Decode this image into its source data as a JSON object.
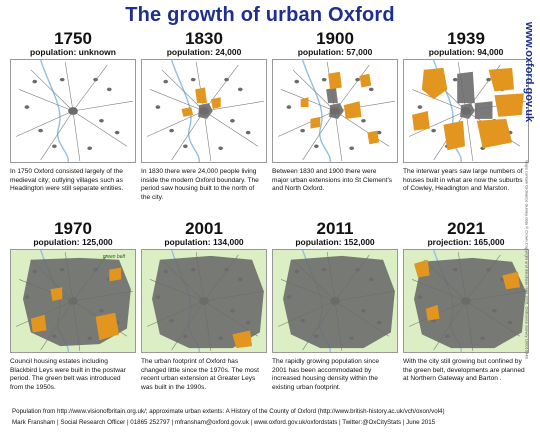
{
  "title": "The growth of urban Oxford",
  "website": "www.oxford.gov.uk",
  "map_credit": "Maps contain Ordnance Survey data © Crown Copyright and database right 2015. Ordnance Survey 100019348.",
  "green_belt_label": "green belt",
  "colors": {
    "title": "#1f2f8f",
    "urban": "#6b6b6b",
    "extension": "#e3961f",
    "green_belt": "#dcefc4",
    "river": "#8fc0e6",
    "roads": "#7a7a7a"
  },
  "panels": [
    {
      "year": "1750",
      "population": "population: unknown",
      "description": "In 1750 Oxford consisted largely of the medieval city; outlying villages such as Headington were still separate entities."
    },
    {
      "year": "1830",
      "population": "population: 24,000",
      "description": "In 1830 there were 24,000 people living inside the modern Oxford boundary.  The period saw housing built to the north of the city."
    },
    {
      "year": "1900",
      "population": "population: 57,000",
      "description": "Between 1830 and 1900 there were major urban extensions into St Clement's and North Oxford."
    },
    {
      "year": "1939",
      "population": "population: 94,000",
      "description": "The interwar years saw large numbers of houses built in what are now the suburbs of Cowley, Headington and Marston."
    },
    {
      "year": "1970",
      "population": "population: 125,000",
      "description": "Council housing estates including Blackbird Leys were built in the postwar period. The green belt was introduced from the 1950s."
    },
    {
      "year": "2001",
      "population": "population: 134,000",
      "description": "The urban footprint of Oxford has changed little since the 1970s.  The most recent urban extension at Greater Leys was built in the 1990s."
    },
    {
      "year": "2011",
      "population": "population: 152,000",
      "description": "The rapidly growing population since 2001 has been accommodated by increased housing density within the existing urban footprint."
    },
    {
      "year": "2021",
      "population": "projection: 165,000",
      "description": "With the city still growing but confined by the green belt, developments are planned at Northern Gateway and Barton ."
    }
  ],
  "footer": {
    "sources": "Population from  http://www.visionofbritain.org.uk/; approximate urban extents: A History of the County of Oxford (http://www.british-history.ac.uk/vch/oxon/vol4)",
    "author": "Mark Fransham | Social Research Officer | 01865 252797 | mfransham@oxford.gov.uk | www.oxford.gov.uk/oxfordstats | Twitter:@OxCityStats | June 2015"
  }
}
